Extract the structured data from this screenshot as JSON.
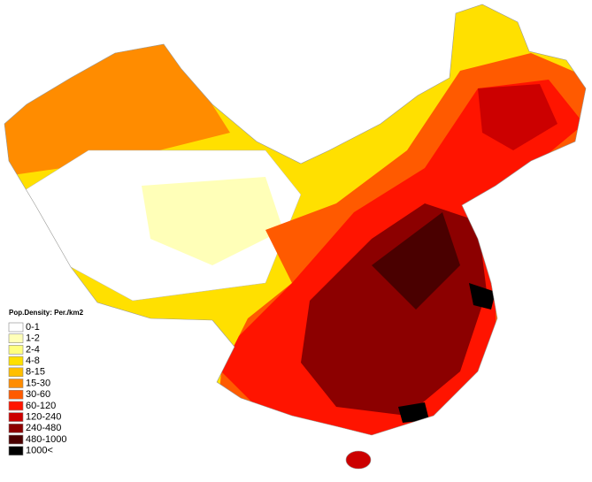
{
  "legend": {
    "title": "Pop.Density: Per./km2",
    "items": [
      {
        "label": "0-1",
        "color": "#ffffff"
      },
      {
        "label": "1-2",
        "color": "#ffffb8"
      },
      {
        "label": "2-4",
        "color": "#ffff80"
      },
      {
        "label": "4-8",
        "color": "#ffe000"
      },
      {
        "label": "8-15",
        "color": "#ffbf00"
      },
      {
        "label": "15-30",
        "color": "#ff8c00"
      },
      {
        "label": "30-60",
        "color": "#ff5a00"
      },
      {
        "label": "60-120",
        "color": "#ff1400"
      },
      {
        "label": "120-240",
        "color": "#cc0000"
      },
      {
        "label": "240-480",
        "color": "#8c0000"
      },
      {
        "label": "480-1000",
        "color": "#4a0000"
      },
      {
        "label": "1000<",
        "color": "#000000"
      }
    ]
  }
}
